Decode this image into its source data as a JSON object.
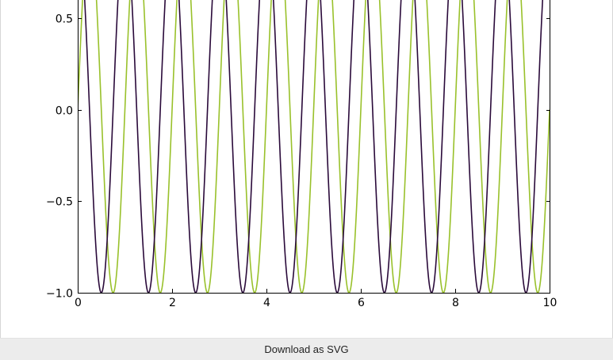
{
  "chart_data": {
    "type": "line",
    "title": "",
    "xlabel": "",
    "ylabel": "",
    "xlim": [
      0,
      10
    ],
    "ylim": [
      -1.0,
      0.5
    ],
    "x_ticks": [
      "0",
      "2",
      "4",
      "6",
      "8",
      "10"
    ],
    "x_tick_values": [
      0,
      2,
      4,
      6,
      8,
      10
    ],
    "y_ticks": [
      "−1.0",
      "−0.5",
      "0.0",
      "0.5"
    ],
    "y_tick_values": [
      -1.0,
      -0.5,
      0.0,
      0.5
    ],
    "grid": false,
    "series": [
      {
        "function": "cos(2*pi*x)",
        "color": "#2a0a3a",
        "x_range": [
          0,
          10
        ]
      },
      {
        "function": "cos(2*pi*(x-0.25))",
        "color": "#99c12b",
        "x_range": [
          0,
          10
        ]
      }
    ]
  },
  "footer": {
    "download_label": "Download as SVG"
  }
}
